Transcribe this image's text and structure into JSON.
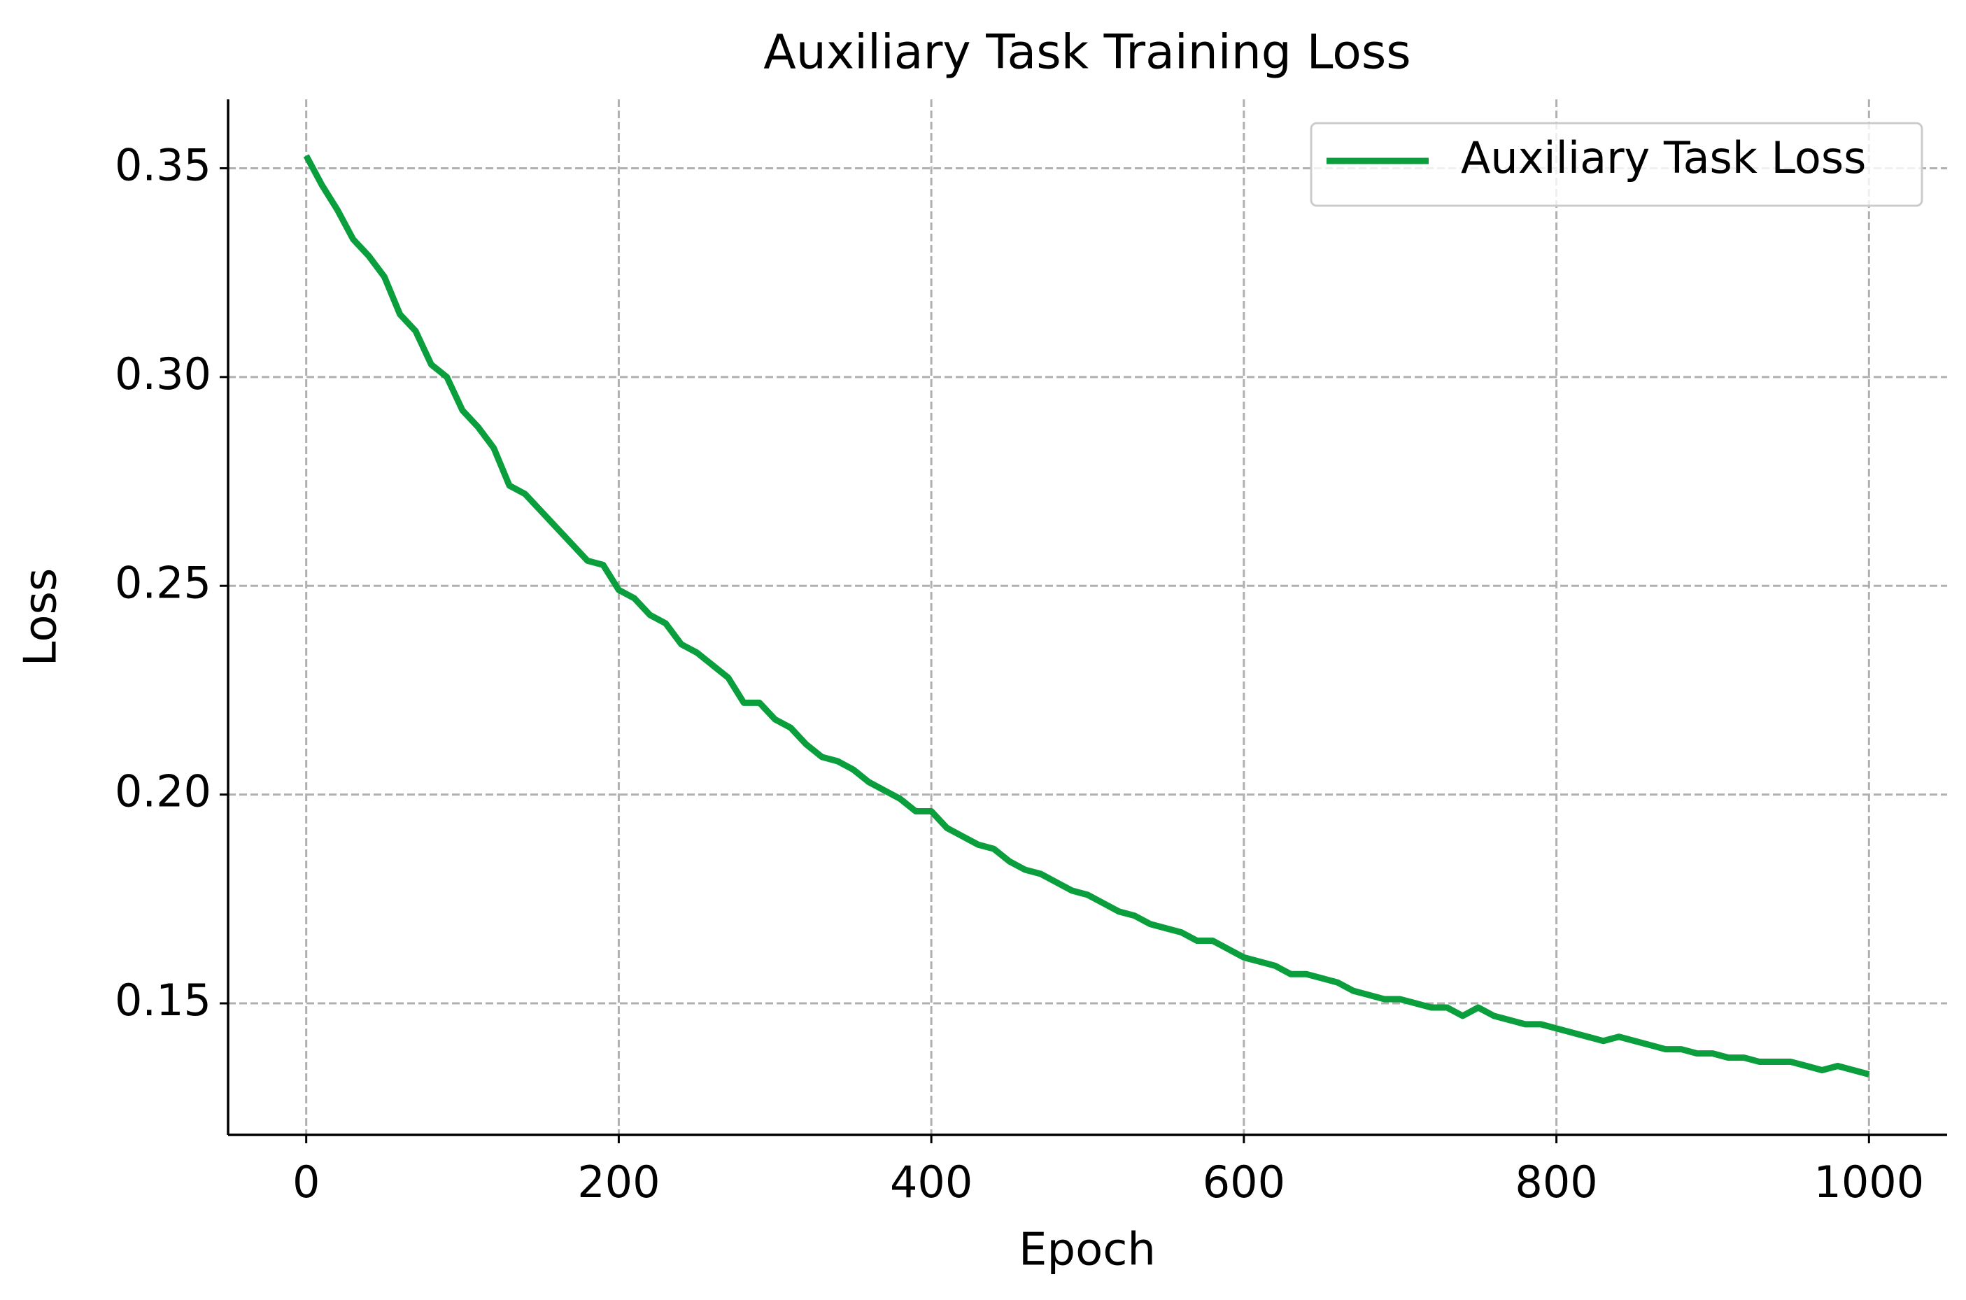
{
  "chart_data": {
    "type": "line",
    "title": "Auxiliary Task Training Loss",
    "x_label": "Epoch",
    "y_label": "Loss",
    "x": [
      0,
      10,
      20,
      30,
      40,
      50,
      60,
      70,
      80,
      90,
      100,
      110,
      120,
      130,
      140,
      150,
      160,
      170,
      180,
      190,
      200,
      210,
      220,
      230,
      240,
      250,
      260,
      270,
      280,
      290,
      300,
      310,
      320,
      330,
      340,
      350,
      360,
      370,
      380,
      390,
      400,
      410,
      420,
      430,
      440,
      450,
      460,
      470,
      480,
      490,
      500,
      510,
      520,
      530,
      540,
      550,
      560,
      570,
      580,
      590,
      600,
      610,
      620,
      630,
      640,
      650,
      660,
      670,
      680,
      690,
      700,
      710,
      720,
      730,
      740,
      750,
      760,
      770,
      780,
      790,
      800,
      810,
      820,
      830,
      840,
      850,
      860,
      870,
      880,
      890,
      900,
      910,
      920,
      930,
      940,
      950,
      960,
      970,
      980,
      990,
      1000
    ],
    "series": [
      {
        "name": "Auxiliary Task Loss",
        "color": "#0a9e3c",
        "values": [
          0.353,
          0.346,
          0.34,
          0.333,
          0.329,
          0.324,
          0.315,
          0.311,
          0.303,
          0.3,
          0.292,
          0.288,
          0.283,
          0.274,
          0.272,
          0.268,
          0.264,
          0.26,
          0.256,
          0.255,
          0.249,
          0.247,
          0.243,
          0.241,
          0.236,
          0.234,
          0.231,
          0.228,
          0.222,
          0.222,
          0.218,
          0.216,
          0.212,
          0.209,
          0.208,
          0.206,
          0.203,
          0.201,
          0.199,
          0.196,
          0.196,
          0.192,
          0.19,
          0.188,
          0.187,
          0.184,
          0.182,
          0.181,
          0.179,
          0.177,
          0.176,
          0.174,
          0.172,
          0.171,
          0.169,
          0.168,
          0.167,
          0.165,
          0.165,
          0.163,
          0.161,
          0.16,
          0.159,
          0.157,
          0.157,
          0.156,
          0.155,
          0.153,
          0.152,
          0.151,
          0.151,
          0.15,
          0.149,
          0.149,
          0.147,
          0.149,
          0.147,
          0.146,
          0.145,
          0.145,
          0.144,
          0.143,
          0.142,
          0.141,
          0.142,
          0.141,
          0.14,
          0.139,
          0.139,
          0.138,
          0.138,
          0.137,
          0.137,
          0.136,
          0.136,
          0.136,
          0.135,
          0.134,
          0.135,
          0.134,
          0.133
        ]
      }
    ],
    "xlim": [
      -50,
      1050
    ],
    "ylim": [
      0.1185,
      0.3665
    ],
    "xticks": [
      0,
      200,
      400,
      600,
      800,
      1000
    ],
    "yticks": [
      {
        "value": 0.15,
        "label": "0.15"
      },
      {
        "value": 0.2,
        "label": "0.20"
      },
      {
        "value": 0.25,
        "label": "0.25"
      },
      {
        "value": 0.3,
        "label": "0.30"
      },
      {
        "value": 0.35,
        "label": "0.35"
      }
    ],
    "grid": true,
    "legend": "upper right"
  }
}
